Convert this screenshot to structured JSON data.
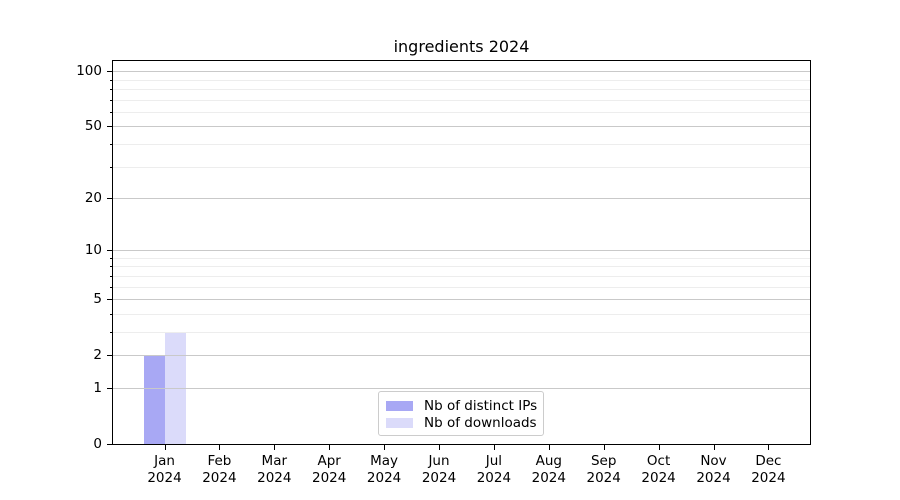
{
  "chart_data": {
    "type": "bar",
    "title": "ingredients 2024",
    "xlabel": "",
    "ylabel": "",
    "categories": [
      "Jan\n2024",
      "Feb\n2024",
      "Mar\n2024",
      "Apr\n2024",
      "May\n2024",
      "Jun\n2024",
      "Jul\n2024",
      "Aug\n2024",
      "Sep\n2024",
      "Oct\n2024",
      "Nov\n2024",
      "Dec\n2024"
    ],
    "series": [
      {
        "name": "Nb of distinct IPs",
        "color": "#a8a8f4",
        "values": [
          2,
          0,
          0,
          0,
          0,
          0,
          0,
          0,
          0,
          0,
          0,
          0
        ]
      },
      {
        "name": "Nb of downloads",
        "color": "#dbdbfa",
        "values": [
          3,
          0,
          0,
          0,
          0,
          0,
          0,
          0,
          0,
          0,
          0,
          0
        ]
      }
    ],
    "yscale": "log1p",
    "ylim": [
      0,
      113.5
    ],
    "yticks": [
      0,
      1,
      2,
      5,
      10,
      20,
      50,
      100
    ],
    "minor_yticks": [
      3,
      4,
      6,
      7,
      8,
      9,
      30,
      40,
      60,
      70,
      80,
      90
    ],
    "grid": "both",
    "legend_position": "lower center",
    "colors": {
      "axis": "#000000",
      "major_grid": "#c9c9c9",
      "minor_grid": "#ededed",
      "legend_border": "#cccccc",
      "background": "#ffffff"
    }
  }
}
